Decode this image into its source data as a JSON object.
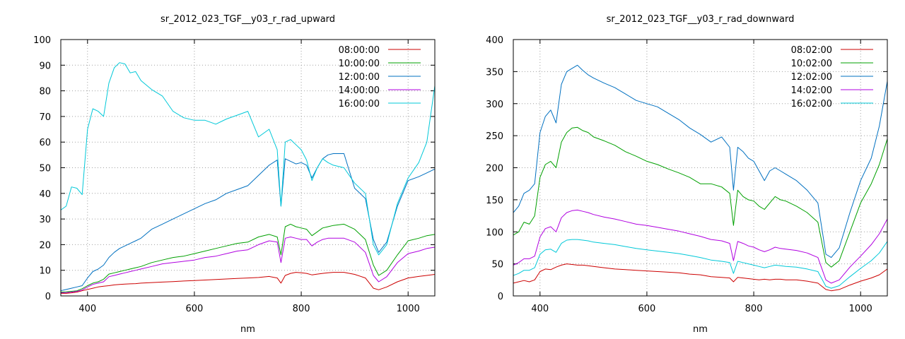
{
  "chart_data": [
    {
      "type": "line",
      "title": "sr_2012_023_TGF__y03_r_rad_upward",
      "xlabel": "nm",
      "ylabel": "",
      "xlim": [
        350,
        1050
      ],
      "ylim": [
        0,
        100
      ],
      "xticks": [
        400,
        600,
        800,
        1000
      ],
      "yticks": [
        0,
        10,
        20,
        30,
        40,
        50,
        60,
        70,
        80,
        90,
        100
      ],
      "grid": true,
      "legend_position": "top-right",
      "x": [
        350,
        360,
        370,
        380,
        390,
        400,
        410,
        420,
        430,
        440,
        450,
        460,
        470,
        480,
        490,
        500,
        520,
        540,
        560,
        580,
        600,
        620,
        640,
        660,
        680,
        700,
        720,
        740,
        755,
        762,
        770,
        780,
        790,
        800,
        810,
        820,
        830,
        840,
        850,
        860,
        880,
        900,
        920,
        935,
        945,
        960,
        980,
        1000,
        1020,
        1035,
        1050
      ],
      "series": [
        {
          "name": "08:00:00",
          "color": "#cc0000",
          "values": [
            1,
            1,
            1.2,
            1.5,
            2,
            2.5,
            3,
            3.5,
            3.8,
            4,
            4.3,
            4.5,
            4.6,
            4.7,
            4.8,
            5,
            5.2,
            5.4,
            5.6,
            5.8,
            6,
            6.2,
            6.4,
            6.6,
            6.8,
            7,
            7.2,
            7.6,
            7,
            5,
            8,
            8.8,
            9.2,
            9,
            8.8,
            8.2,
            8.5,
            8.8,
            9,
            9.2,
            9.2,
            8.4,
            7,
            3,
            2.4,
            3.5,
            5.5,
            7,
            7.6,
            8,
            8.4
          ]
        },
        {
          "name": "10:00:00",
          "color": "#00a000",
          "values": [
            1.5,
            1.6,
            1.8,
            2,
            2.8,
            4,
            5,
            5.5,
            6.5,
            8.5,
            9,
            9.5,
            10,
            10.5,
            11,
            11.5,
            13,
            14,
            15,
            15.5,
            16.5,
            17.5,
            18.5,
            19.5,
            20.5,
            21,
            23,
            24,
            23,
            16,
            27,
            28,
            27,
            26.5,
            26,
            23.5,
            25,
            26.5,
            27,
            27.5,
            28,
            26,
            22,
            12,
            8,
            10,
            16,
            21.5,
            22.5,
            23.5,
            24
          ]
        },
        {
          "name": "12:00:00",
          "color": "#0070c0",
          "values": [
            2,
            2.5,
            3,
            3.5,
            4,
            7,
            9.5,
            10.5,
            12,
            15,
            17,
            18.5,
            19.5,
            20.5,
            21.5,
            22.5,
            26,
            28,
            30,
            32,
            34,
            36,
            37.5,
            40,
            41.5,
            43,
            47,
            51,
            53,
            35,
            53.5,
            52.5,
            51.5,
            52,
            51,
            46,
            50,
            53.5,
            55,
            55.5,
            55.5,
            42,
            38,
            22,
            17,
            21,
            35,
            45,
            46.5,
            48,
            49.5
          ]
        },
        {
          "name": "14:00:00",
          "color": "#b000e0",
          "values": [
            1.2,
            1.3,
            1.5,
            1.8,
            2.3,
            3.5,
            4.5,
            5,
            5.5,
            7.5,
            8,
            8.5,
            9,
            9.5,
            10,
            10.5,
            11.5,
            12.5,
            13,
            13.5,
            14,
            15,
            15.5,
            16.5,
            17.5,
            18,
            20,
            21.5,
            21,
            13,
            22.5,
            23,
            22.5,
            22,
            22,
            19.5,
            21,
            22,
            22.5,
            22.5,
            22.5,
            21,
            17,
            8,
            5.5,
            7.5,
            13,
            16.5,
            17.5,
            18.5,
            19
          ]
        },
        {
          "name": "16:00:00",
          "color": "#00c8d8",
          "values": [
            33.5,
            35,
            42.5,
            42,
            39.5,
            65,
            73,
            72,
            70,
            83,
            89,
            91,
            90.5,
            87,
            87.5,
            84,
            80.5,
            78,
            72,
            69.5,
            68.5,
            68.5,
            67,
            69,
            70.5,
            72,
            62,
            65,
            57,
            35,
            60,
            61,
            59,
            57,
            53,
            45,
            50,
            53.5,
            52,
            51,
            50,
            44,
            40,
            20,
            16,
            20,
            36,
            46,
            52,
            60,
            82
          ]
        }
      ]
    },
    {
      "type": "line",
      "title": "sr_2012_023_TGF__y03_r_rad_downward",
      "xlabel": "nm",
      "ylabel": "",
      "xlim": [
        350,
        1050
      ],
      "ylim": [
        0,
        400
      ],
      "xticks": [
        400,
        600,
        800,
        1000
      ],
      "yticks": [
        0,
        50,
        100,
        150,
        200,
        250,
        300,
        350,
        400
      ],
      "grid": true,
      "legend_position": "top-right",
      "x": [
        350,
        360,
        370,
        380,
        390,
        400,
        410,
        420,
        430,
        440,
        450,
        460,
        470,
        480,
        490,
        500,
        520,
        540,
        560,
        580,
        600,
        620,
        640,
        660,
        680,
        700,
        720,
        740,
        755,
        762,
        770,
        780,
        790,
        800,
        810,
        820,
        830,
        840,
        850,
        860,
        880,
        900,
        920,
        935,
        945,
        960,
        980,
        1000,
        1020,
        1035,
        1050
      ],
      "series": [
        {
          "name": "08:02:00",
          "color": "#cc0000",
          "values": [
            20,
            22,
            24,
            22,
            25,
            38,
            42,
            41,
            45,
            48,
            50,
            49,
            48,
            48,
            47,
            46,
            44,
            42,
            41,
            40,
            39,
            38,
            37,
            36,
            34,
            33,
            30,
            29,
            28,
            22,
            29,
            28,
            27,
            26,
            25,
            26,
            25,
            26,
            26,
            25,
            25,
            23,
            20,
            10,
            8,
            10,
            17,
            23,
            28,
            33,
            42
          ]
        },
        {
          "name": "10:02:00",
          "color": "#00a000",
          "values": [
            95,
            100,
            115,
            112,
            125,
            185,
            205,
            210,
            200,
            240,
            255,
            262,
            263,
            258,
            255,
            248,
            242,
            235,
            225,
            218,
            210,
            205,
            198,
            192,
            185,
            175,
            175,
            170,
            160,
            110,
            165,
            155,
            150,
            148,
            140,
            135,
            145,
            155,
            150,
            148,
            140,
            130,
            115,
            52,
            45,
            55,
            100,
            145,
            175,
            205,
            245
          ]
        },
        {
          "name": "12:02:00",
          "color": "#0070c0",
          "values": [
            130,
            140,
            160,
            165,
            175,
            255,
            280,
            290,
            270,
            330,
            350,
            355,
            360,
            352,
            345,
            340,
            332,
            325,
            315,
            305,
            300,
            295,
            285,
            275,
            262,
            252,
            240,
            248,
            232,
            165,
            232,
            225,
            215,
            210,
            195,
            180,
            195,
            200,
            195,
            190,
            180,
            165,
            145,
            65,
            60,
            75,
            130,
            180,
            215,
            265,
            335
          ]
        },
        {
          "name": "14:02:00",
          "color": "#b000e0",
          "values": [
            48,
            52,
            58,
            58,
            62,
            92,
            105,
            108,
            100,
            122,
            130,
            133,
            134,
            132,
            130,
            127,
            123,
            120,
            116,
            112,
            110,
            107,
            104,
            101,
            97,
            93,
            88,
            86,
            82,
            55,
            85,
            82,
            78,
            76,
            72,
            69,
            72,
            76,
            74,
            73,
            71,
            67,
            60,
            25,
            20,
            25,
            45,
            62,
            80,
            97,
            120
          ]
        },
        {
          "name": "16:02:00",
          "color": "#00c8d8",
          "values": [
            32,
            35,
            40,
            40,
            44,
            65,
            72,
            73,
            68,
            82,
            87,
            88,
            88,
            87,
            86,
            84,
            82,
            80,
            77,
            74,
            72,
            70,
            68,
            66,
            63,
            60,
            56,
            54,
            52,
            35,
            54,
            52,
            50,
            48,
            46,
            44,
            46,
            48,
            47,
            46,
            45,
            42,
            38,
            15,
            12,
            16,
            30,
            43,
            55,
            67,
            85
          ]
        }
      ]
    }
  ]
}
